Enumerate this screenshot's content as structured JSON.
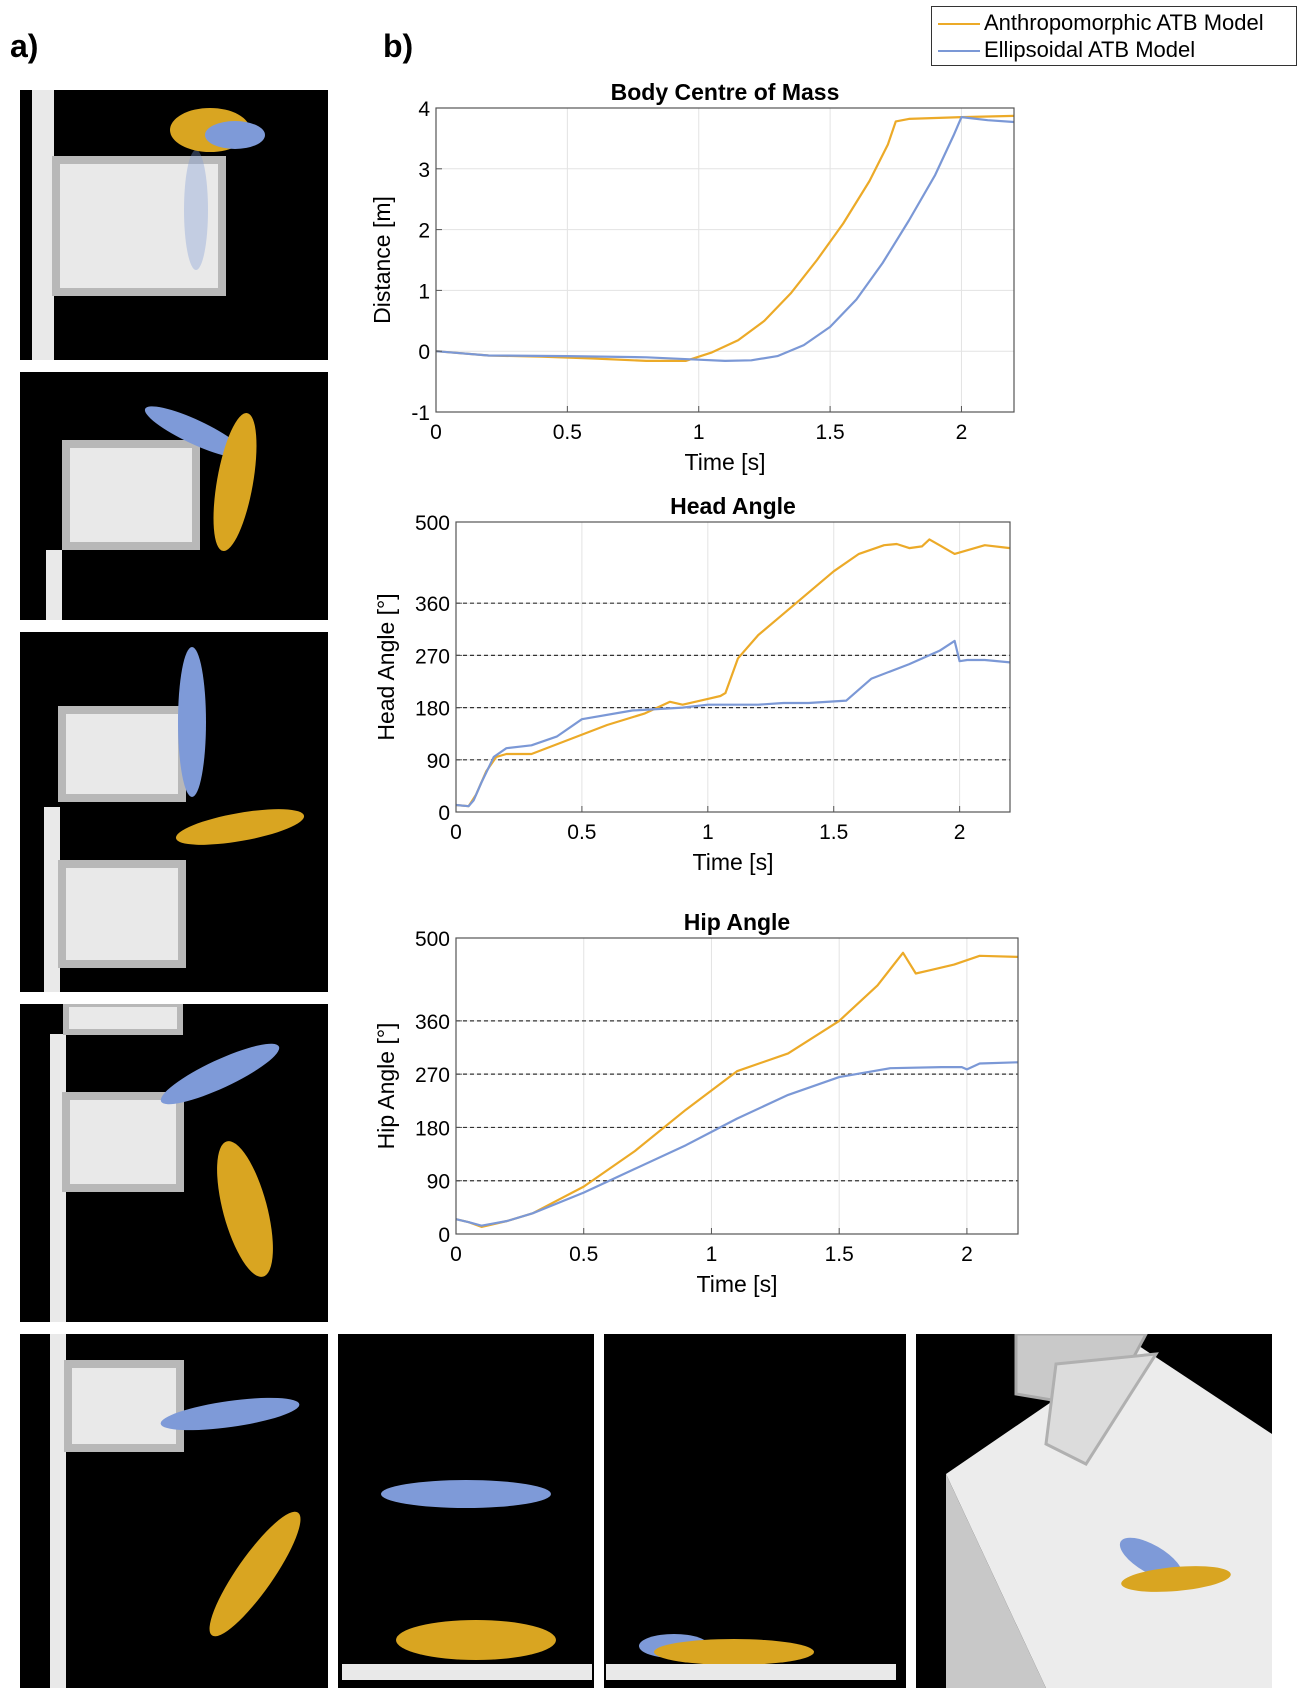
{
  "panel_labels": {
    "a": "a)",
    "b": "b)"
  },
  "colors": {
    "anthropomorphic": "#ecaa28",
    "ellipsoidal": "#7b98d6",
    "body_gold": "#d9a521",
    "body_blue": "#7e9ad8",
    "box": "#e9e9e9",
    "box_edge": "#b8b8b8"
  },
  "legend": {
    "items": [
      {
        "label": "Anthropomorphic ATB Model",
        "color": "#ecaa28"
      },
      {
        "label": "Ellipsoidal ATB Model",
        "color": "#7b98d6"
      }
    ]
  },
  "chart_data": [
    {
      "type": "line",
      "title": "Body Centre of Mass",
      "xlabel": "Time [s]",
      "ylabel": "Distance [m]",
      "xlim": [
        0,
        2.2
      ],
      "ylim": [
        -1,
        4
      ],
      "xticks": [
        0,
        0.5,
        1,
        1.5,
        2
      ],
      "xtick_labels": [
        "0",
        "0.5",
        "1",
        "1.5",
        "2"
      ],
      "yticks": [
        -1,
        0,
        1,
        2,
        3,
        4
      ],
      "ytick_labels": [
        "-1",
        "0",
        "1",
        "2",
        "3",
        "4"
      ],
      "grid": true,
      "series": [
        {
          "name": "Anthropomorphic ATB Model",
          "x": [
            0,
            0.2,
            0.4,
            0.6,
            0.8,
            0.95,
            1.05,
            1.15,
            1.25,
            1.35,
            1.45,
            1.55,
            1.65,
            1.72,
            1.75,
            1.8,
            2.0,
            2.2
          ],
          "y": [
            0.0,
            -0.07,
            -0.09,
            -0.12,
            -0.16,
            -0.16,
            -0.02,
            0.18,
            0.5,
            0.95,
            1.5,
            2.1,
            2.8,
            3.4,
            3.78,
            3.82,
            3.85,
            3.87
          ]
        },
        {
          "name": "Ellipsoidal ATB Model",
          "x": [
            0,
            0.2,
            0.5,
            0.8,
            1.0,
            1.1,
            1.2,
            1.3,
            1.4,
            1.5,
            1.6,
            1.7,
            1.8,
            1.9,
            1.97,
            2.0,
            2.1,
            2.2
          ],
          "y": [
            0.0,
            -0.07,
            -0.08,
            -0.1,
            -0.14,
            -0.16,
            -0.15,
            -0.08,
            0.1,
            0.4,
            0.85,
            1.45,
            2.15,
            2.9,
            3.55,
            3.85,
            3.8,
            3.77
          ]
        }
      ]
    },
    {
      "type": "line",
      "title": "Head Angle",
      "xlabel": "Time [s]",
      "ylabel": "Head Angle [°]",
      "xlim": [
        0,
        2.2
      ],
      "ylim": [
        0,
        500
      ],
      "xticks": [
        0,
        0.5,
        1,
        1.5,
        2
      ],
      "xtick_labels": [
        "0",
        "0.5",
        "1",
        "1.5",
        "2"
      ],
      "yticks": [
        0,
        90,
        180,
        270,
        360,
        500
      ],
      "ytick_labels": [
        "0",
        "90",
        "180",
        "270",
        "360",
        "500"
      ],
      "reference_lines": [
        90,
        180,
        270,
        360
      ],
      "grid": true,
      "series": [
        {
          "name": "Anthropomorphic ATB Model",
          "x": [
            0,
            0.05,
            0.08,
            0.12,
            0.16,
            0.2,
            0.3,
            0.45,
            0.6,
            0.75,
            0.85,
            0.9,
            1.0,
            1.05,
            1.07,
            1.12,
            1.2,
            1.35,
            1.5,
            1.6,
            1.7,
            1.75,
            1.8,
            1.85,
            1.88,
            1.92,
            1.98,
            2.1,
            2.2
          ],
          "y": [
            12,
            10,
            30,
            70,
            95,
            100,
            100,
            125,
            150,
            170,
            190,
            185,
            195,
            200,
            205,
            265,
            305,
            360,
            415,
            445,
            460,
            462,
            455,
            458,
            470,
            460,
            445,
            460,
            455
          ]
        },
        {
          "name": "Ellipsoidal ATB Model",
          "x": [
            0,
            0.05,
            0.07,
            0.1,
            0.15,
            0.2,
            0.3,
            0.4,
            0.5,
            0.7,
            0.9,
            1.0,
            1.2,
            1.3,
            1.4,
            1.55,
            1.65,
            1.8,
            1.92,
            1.98,
            2.0,
            2.03,
            2.1,
            2.2
          ],
          "y": [
            12,
            10,
            20,
            50,
            95,
            110,
            115,
            130,
            160,
            175,
            180,
            185,
            185,
            188,
            188,
            192,
            230,
            255,
            278,
            295,
            260,
            262,
            262,
            258
          ]
        }
      ]
    },
    {
      "type": "line",
      "title": "Hip Angle",
      "xlabel": "Time [s]",
      "ylabel": "Hip Angle [°]",
      "xlim": [
        0,
        2.2
      ],
      "ylim": [
        0,
        500
      ],
      "xticks": [
        0,
        0.5,
        1,
        1.5,
        2
      ],
      "xtick_labels": [
        "0",
        "0.5",
        "1",
        "1.5",
        "2"
      ],
      "yticks": [
        0,
        90,
        180,
        270,
        360,
        500
      ],
      "ytick_labels": [
        "0",
        "90",
        "180",
        "270",
        "360",
        "500"
      ],
      "reference_lines": [
        90,
        180,
        270,
        360
      ],
      "grid": true,
      "series": [
        {
          "name": "Anthropomorphic ATB Model",
          "x": [
            0,
            0.05,
            0.1,
            0.2,
            0.3,
            0.5,
            0.7,
            0.9,
            1.1,
            1.3,
            1.5,
            1.65,
            1.75,
            1.8,
            1.85,
            1.95,
            2.05,
            2.2
          ],
          "y": [
            25,
            20,
            12,
            22,
            35,
            80,
            140,
            210,
            275,
            305,
            360,
            420,
            475,
            440,
            445,
            455,
            470,
            468
          ]
        },
        {
          "name": "Ellipsoidal ATB Model",
          "x": [
            0,
            0.05,
            0.1,
            0.2,
            0.3,
            0.5,
            0.7,
            0.9,
            1.1,
            1.3,
            1.5,
            1.7,
            1.9,
            1.98,
            2.0,
            2.05,
            2.2
          ],
          "y": [
            25,
            20,
            14,
            22,
            35,
            70,
            110,
            150,
            195,
            235,
            265,
            280,
            282,
            282,
            278,
            288,
            290
          ]
        }
      ]
    }
  ]
}
